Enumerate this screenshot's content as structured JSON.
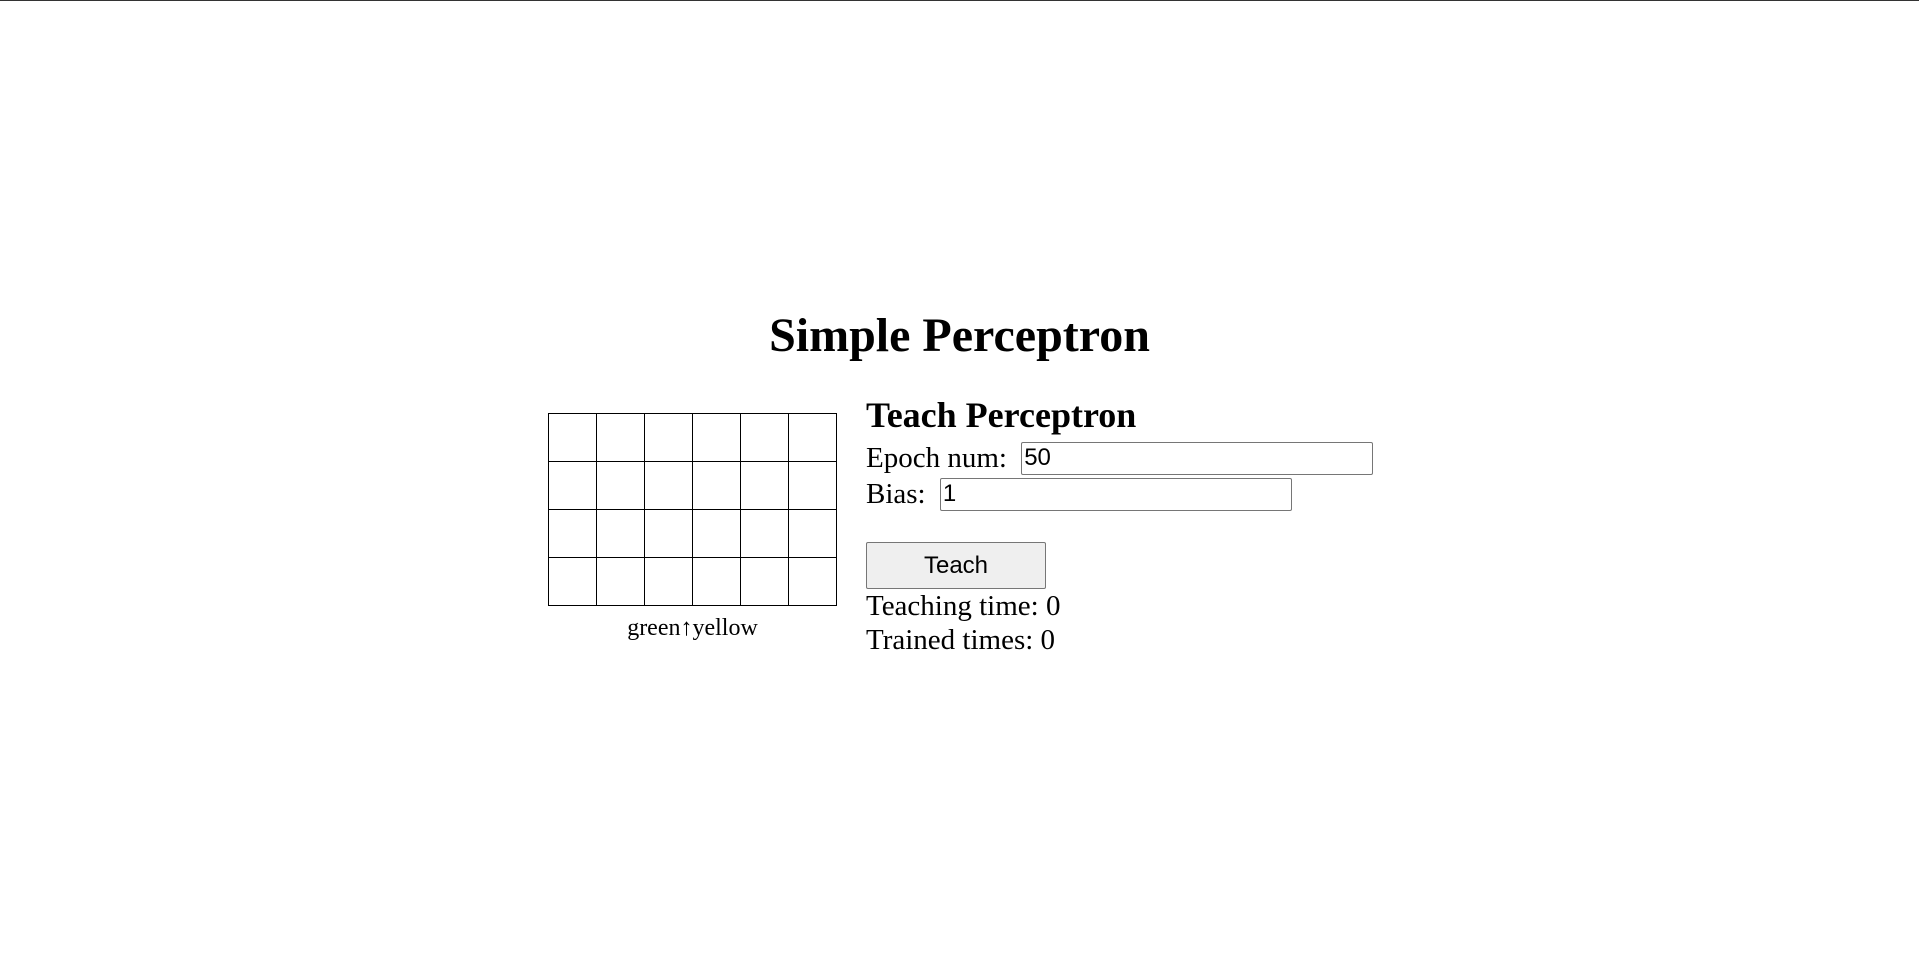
{
  "page": {
    "title": "Simple Perceptron"
  },
  "grid": {
    "rows": 4,
    "columns": 6,
    "caption": "green↑yellow"
  },
  "teach_panel": {
    "title": "Teach Perceptron",
    "epoch_label": "Epoch num: ",
    "epoch_value": "50",
    "bias_label": "Bias: ",
    "bias_value": "1",
    "teach_button_label": "Teach",
    "teaching_time_label": "Teaching time: ",
    "teaching_time_value": "0",
    "trained_times_label": "Trained times: ",
    "trained_times_value": "0"
  },
  "colors": {
    "background": "#ffffff",
    "text": "#000000",
    "button_bg": "#efefef",
    "grid_line": "#000000"
  }
}
